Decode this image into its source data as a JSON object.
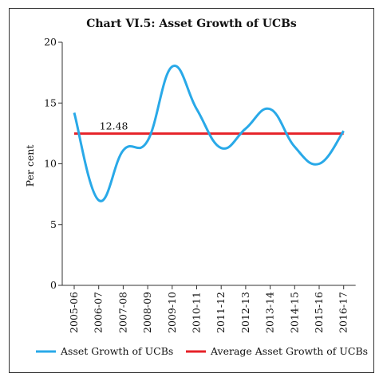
{
  "chart_data": {
    "type": "line",
    "title": "Chart VI.5: Asset Growth of UCBs",
    "xlabel": "",
    "ylabel": "Per cent",
    "ylim": [
      0,
      20
    ],
    "yticks": [
      0,
      5,
      10,
      15,
      20
    ],
    "categories": [
      "2005-06",
      "2006-07",
      "2007-08",
      "2008-09",
      "2009-10",
      "2010-11",
      "2011-12",
      "2012-13",
      "2013-14",
      "2014-15",
      "2015-16",
      "2016-17"
    ],
    "series": [
      {
        "name": "Asset Growth of UCBs",
        "color": "#29a9e8",
        "values": [
          14.2,
          7.0,
          11.1,
          11.9,
          18.0,
          14.5,
          11.3,
          12.9,
          14.5,
          11.4,
          10.0,
          12.7
        ]
      },
      {
        "name": "Average Asset Growth of UCBs",
        "color": "#e62228",
        "values": [
          12.48,
          12.48,
          12.48,
          12.48,
          12.48,
          12.48,
          12.48,
          12.48,
          12.48,
          12.48,
          12.48,
          12.48
        ]
      }
    ],
    "annotations": [
      {
        "text": "12.48",
        "x": "2006-07",
        "y": 12.48
      }
    ],
    "legend": "bottom",
    "grid": false
  }
}
